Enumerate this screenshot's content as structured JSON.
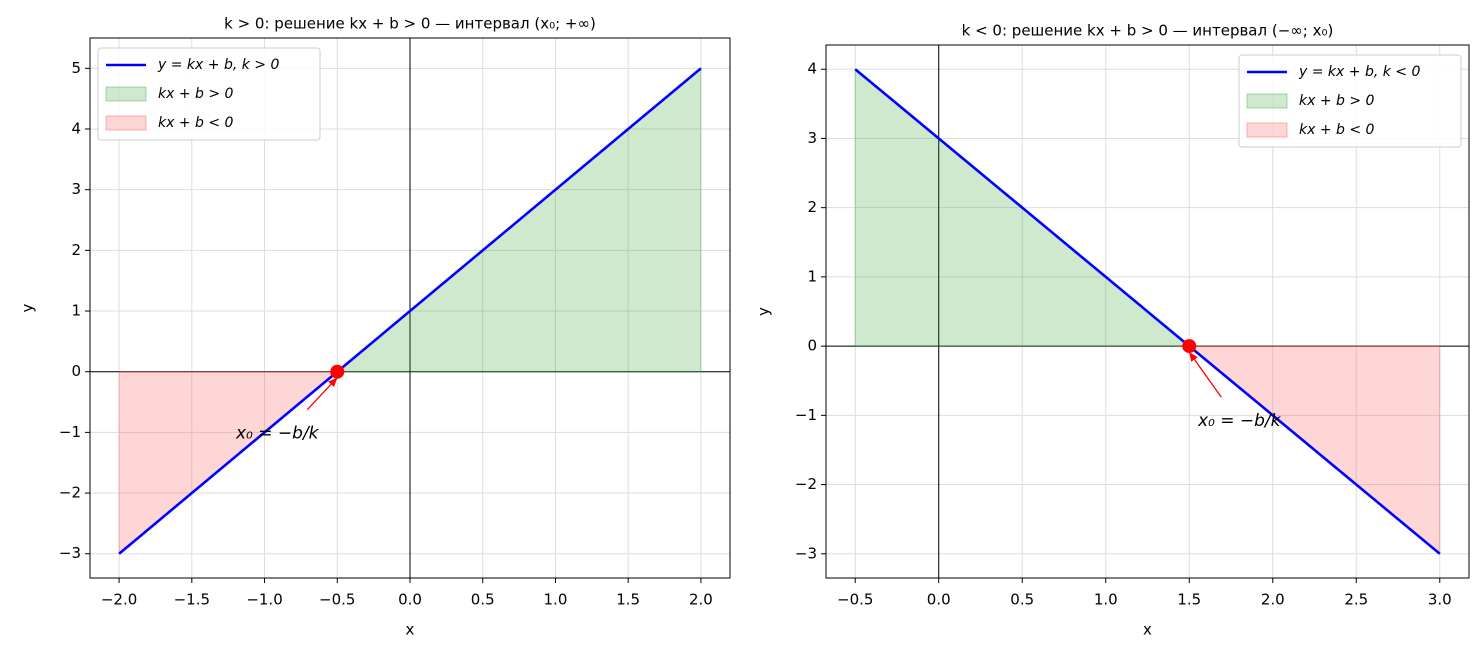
{
  "chart_data": [
    {
      "type": "line",
      "title": "k > 0: решение kx + b > 0 — интервал (x₀;  +∞)",
      "x_label": "x",
      "y_label": "y",
      "grid": true,
      "legend": "upper left",
      "x": [
        -2,
        2
      ],
      "series": [
        {
          "name": "y = kx + b,  k > 0",
          "color": "#0000ff",
          "values": [
            -3,
            5
          ]
        }
      ],
      "fills": [
        {
          "name": "kx + b > 0",
          "color": "#2ca02c",
          "x": [
            -0.5,
            2
          ],
          "values": [
            0,
            5
          ]
        },
        {
          "name": "kx + b < 0",
          "color": "#ff4d4d",
          "x": [
            -2,
            -0.5
          ],
          "values": [
            -3,
            0
          ]
        }
      ],
      "root": {
        "x": -0.5,
        "y": 0,
        "color": "#ff0000",
        "label": "x₀ = −b/k"
      },
      "xlim": [
        -2.2,
        2.2
      ],
      "ylim": [
        -3.4,
        5.5
      ],
      "xticks": [
        {
          "value": -2,
          "label": "−2.0"
        },
        {
          "value": -1.5,
          "label": "−1.5"
        },
        {
          "value": -1,
          "label": "−1.0"
        },
        {
          "value": -0.5,
          "label": "−0.5"
        },
        {
          "value": 0,
          "label": "0.0"
        },
        {
          "value": 0.5,
          "label": "0.5"
        },
        {
          "value": 1,
          "label": "1.0"
        },
        {
          "value": 1.5,
          "label": "1.5"
        },
        {
          "value": 2,
          "label": "2.0"
        }
      ],
      "yticks": [
        {
          "value": -3,
          "label": "−3"
        },
        {
          "value": -2,
          "label": "−2"
        },
        {
          "value": -1,
          "label": "−1"
        },
        0,
        1,
        2,
        3,
        4,
        5
      ]
    },
    {
      "type": "line",
      "title": "k < 0: решение kx + b > 0 — интервал (−∞;  x₀)",
      "x_label": "x",
      "y_label": "y",
      "grid": true,
      "legend": "upper right",
      "x": [
        -0.5,
        3
      ],
      "series": [
        {
          "name": "y = kx + b,  k < 0",
          "color": "#0000ff",
          "values": [
            4,
            -3
          ]
        }
      ],
      "fills": [
        {
          "name": "kx + b > 0",
          "color": "#2ca02c",
          "x": [
            -0.5,
            1.5
          ],
          "values": [
            4,
            0
          ]
        },
        {
          "name": "kx + b < 0",
          "color": "#ff4d4d",
          "x": [
            1.5,
            3
          ],
          "values": [
            0,
            -3
          ]
        }
      ],
      "root": {
        "x": 1.5,
        "y": 0,
        "color": "#ff0000",
        "label": "x₀ = −b/k"
      },
      "xlim": [
        -0.675,
        3.175
      ],
      "ylim": [
        -3.35,
        4.35
      ],
      "xticks": [
        {
          "value": -0.5,
          "label": "−0.5"
        },
        {
          "value": 0,
          "label": "0.0"
        },
        {
          "value": 0.5,
          "label": "0.5"
        },
        {
          "value": 1,
          "label": "1.0"
        },
        {
          "value": 1.5,
          "label": "1.5"
        },
        {
          "value": 2,
          "label": "2.0"
        },
        {
          "value": 2.5,
          "label": "2.5"
        },
        {
          "value": 3,
          "label": "3.0"
        }
      ],
      "yticks": [
        {
          "value": -3,
          "label": "−3"
        },
        {
          "value": -2,
          "label": "−2"
        },
        {
          "value": -1,
          "label": "−1"
        },
        0,
        1,
        2,
        3,
        4
      ]
    }
  ]
}
